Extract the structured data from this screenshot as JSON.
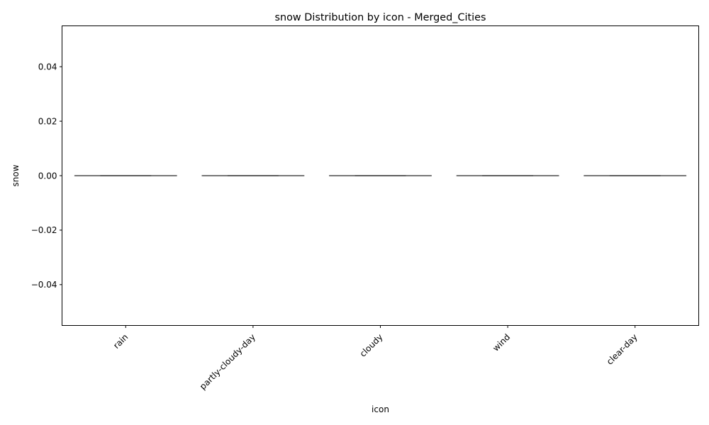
{
  "chart_data": {
    "type": "box",
    "title": "snow Distribution by icon - Merged_Cities",
    "xlabel": "icon",
    "ylabel": "snow",
    "categories": [
      "rain",
      "partly-cloudy-day",
      "cloudy",
      "wind",
      "clear-day"
    ],
    "boxes": [
      {
        "category": "rain",
        "min": 0,
        "q1": 0,
        "median": 0,
        "q3": 0,
        "max": 0
      },
      {
        "category": "partly-cloudy-day",
        "min": 0,
        "q1": 0,
        "median": 0,
        "q3": 0,
        "max": 0
      },
      {
        "category": "cloudy",
        "min": 0,
        "q1": 0,
        "median": 0,
        "q3": 0,
        "max": 0
      },
      {
        "category": "wind",
        "min": 0,
        "q1": 0,
        "median": 0,
        "q3": 0,
        "max": 0
      },
      {
        "category": "clear-day",
        "min": 0,
        "q1": 0,
        "median": 0,
        "q3": 0,
        "max": 0
      }
    ],
    "ylim": [
      -0.055,
      0.055
    ],
    "yticks": [
      -0.04,
      -0.02,
      0.0,
      0.02,
      0.04
    ],
    "ytick_labels": [
      "−0.04",
      "−0.02",
      "0.00",
      "0.02",
      "0.04"
    ],
    "grid": false,
    "box_color": "#3f3f3f"
  }
}
